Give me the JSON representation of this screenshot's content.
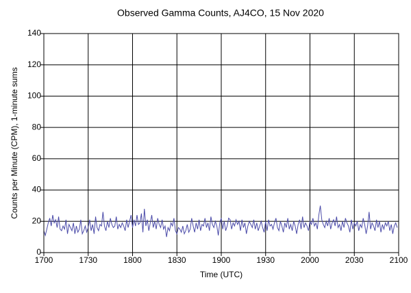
{
  "chart_data": {
    "type": "line",
    "title": "Observed Gamma Counts, AJ4CO, 15 Nov 2020",
    "x_label": "Time (UTC)",
    "y_label": "Counts per Minute (CPM), 1-minute sums",
    "color": "#4a4aa8",
    "grid": true,
    "xlim": [
      "1700",
      "2100"
    ],
    "xticks": [
      "1700",
      "1730",
      "1800",
      "1830",
      "1900",
      "1930",
      "2000",
      "2030",
      "2100"
    ],
    "ylim": [
      0,
      140
    ],
    "yticks": [
      0,
      20,
      40,
      60,
      80,
      100,
      120,
      140
    ],
    "x": [
      "1700",
      "1701",
      "1702",
      "1703",
      "1704",
      "1705",
      "1706",
      "1707",
      "1708",
      "1709",
      "1710",
      "1711",
      "1712",
      "1713",
      "1714",
      "1715",
      "1716",
      "1717",
      "1718",
      "1719",
      "1720",
      "1721",
      "1722",
      "1723",
      "1724",
      "1725",
      "1726",
      "1727",
      "1728",
      "1729",
      "1730",
      "1731",
      "1732",
      "1733",
      "1734",
      "1735",
      "1736",
      "1737",
      "1738",
      "1739",
      "1740",
      "1741",
      "1742",
      "1743",
      "1744",
      "1745",
      "1746",
      "1747",
      "1748",
      "1749",
      "1750",
      "1751",
      "1752",
      "1753",
      "1754",
      "1755",
      "1756",
      "1757",
      "1758",
      "1759",
      "1800",
      "1801",
      "1802",
      "1803",
      "1804",
      "1805",
      "1806",
      "1807",
      "1808",
      "1809",
      "1810",
      "1811",
      "1812",
      "1813",
      "1814",
      "1815",
      "1816",
      "1817",
      "1818",
      "1819",
      "1820",
      "1821",
      "1822",
      "1823",
      "1824",
      "1825",
      "1826",
      "1827",
      "1828",
      "1829",
      "1830",
      "1831",
      "1832",
      "1833",
      "1834",
      "1835",
      "1836",
      "1837",
      "1838",
      "1839",
      "1840",
      "1841",
      "1842",
      "1843",
      "1844",
      "1845",
      "1846",
      "1847",
      "1848",
      "1849",
      "1850",
      "1851",
      "1852",
      "1853",
      "1854",
      "1855",
      "1856",
      "1857",
      "1858",
      "1859",
      "1900",
      "1901",
      "1902",
      "1903",
      "1904",
      "1905",
      "1906",
      "1907",
      "1908",
      "1909",
      "1910",
      "1911",
      "1912",
      "1913",
      "1914",
      "1915",
      "1916",
      "1917",
      "1918",
      "1919",
      "1920",
      "1921",
      "1922",
      "1923",
      "1924",
      "1925",
      "1926",
      "1927",
      "1928",
      "1929",
      "1930",
      "1931",
      "1932",
      "1933",
      "1934",
      "1935",
      "1936",
      "1937",
      "1938",
      "1939",
      "1940",
      "1941",
      "1942",
      "1943",
      "1944",
      "1945",
      "1946",
      "1947",
      "1948",
      "1949",
      "1950",
      "1951",
      "1952",
      "1953",
      "1954",
      "1955",
      "1956",
      "1957",
      "1958",
      "1959",
      "2000",
      "2001",
      "2002",
      "2003",
      "2004",
      "2005",
      "2006",
      "2007",
      "2008",
      "2009",
      "2010",
      "2011",
      "2012",
      "2013",
      "2014",
      "2015",
      "2016",
      "2017",
      "2018",
      "2019",
      "2020",
      "2021",
      "2022",
      "2023",
      "2024",
      "2025",
      "2026",
      "2027",
      "2028",
      "2029",
      "2030",
      "2031",
      "2032",
      "2033",
      "2034",
      "2035",
      "2036",
      "2037",
      "2038",
      "2039",
      "2040",
      "2041",
      "2042",
      "2043",
      "2044",
      "2045",
      "2046",
      "2047",
      "2048",
      "2049",
      "2050",
      "2051",
      "2052",
      "2053",
      "2054",
      "2055",
      "2056",
      "2057",
      "2058",
      "2059"
    ],
    "values": [
      14,
      11,
      15,
      19,
      22,
      17,
      24,
      19,
      21,
      16,
      23,
      15,
      14,
      17,
      15,
      21,
      12,
      18,
      16,
      14,
      19,
      12,
      17,
      13,
      15,
      21,
      12,
      14,
      17,
      13,
      16,
      21,
      14,
      18,
      12,
      23,
      16,
      14,
      18,
      17,
      26,
      17,
      14,
      20,
      16,
      22,
      18,
      16,
      17,
      23,
      15,
      18,
      16,
      19,
      17,
      14,
      21,
      16,
      20,
      24,
      16,
      21,
      17,
      24,
      18,
      19,
      25,
      13,
      28,
      17,
      21,
      14,
      19,
      24,
      16,
      20,
      15,
      22,
      18,
      16,
      21,
      15,
      17,
      10,
      16,
      14,
      19,
      17,
      22,
      14,
      12,
      16,
      15,
      13,
      17,
      12,
      14,
      18,
      13,
      15,
      22,
      17,
      13,
      19,
      15,
      21,
      14,
      18,
      17,
      22,
      16,
      19,
      14,
      23,
      18,
      16,
      20,
      17,
      11,
      19,
      22,
      15,
      20,
      14,
      17,
      22,
      21,
      15,
      19,
      17,
      21,
      18,
      20,
      14,
      21,
      16,
      19,
      12,
      17,
      20,
      18,
      16,
      21,
      15,
      19,
      14,
      17,
      20,
      16,
      13,
      20,
      14,
      21,
      17,
      18,
      15,
      19,
      22,
      16,
      14,
      20,
      17,
      13,
      19,
      16,
      22,
      15,
      18,
      14,
      20,
      17,
      12,
      18,
      21,
      15,
      23,
      16,
      19,
      17,
      14,
      20,
      18,
      22,
      17,
      19,
      15,
      24,
      30,
      21,
      18,
      16,
      20,
      17,
      22,
      15,
      19,
      21,
      17,
      23,
      16,
      18,
      14,
      20,
      16,
      22,
      19,
      17,
      13,
      21,
      15,
      19,
      17,
      20,
      14,
      18,
      16,
      22,
      18,
      12,
      17,
      26,
      15,
      19,
      17,
      14,
      21,
      16,
      20,
      13,
      18,
      15,
      19,
      17,
      20,
      14,
      18,
      12,
      17,
      19,
      16
    ]
  }
}
